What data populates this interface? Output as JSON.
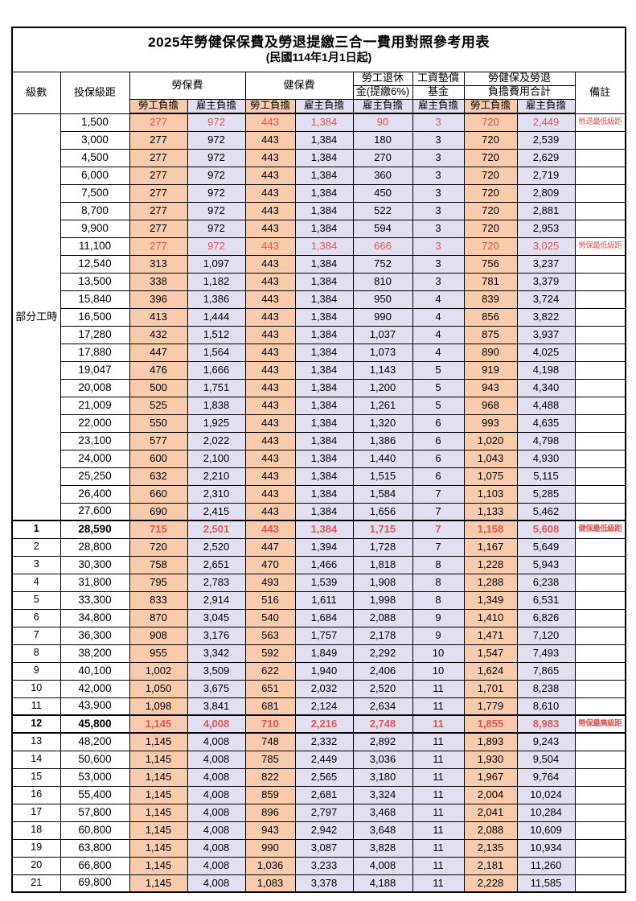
{
  "page": {
    "title": "2025年勞健保保費及勞退提繳三合一費用對照參考用表",
    "subtitle": "(民國114年1月1日起)"
  },
  "header": {
    "level": "級數",
    "salary": "投保級距",
    "labor_insurance": "勞保費",
    "health_insurance": "健保費",
    "pension_line1": "勞工退休",
    "pension_line2": "金(提繳6%)",
    "wage_fund_line1": "工資墊償",
    "wage_fund_line2": "基金",
    "total_line1": "勞健保及勞退",
    "total_line2": "負擔費用合計",
    "remark": "備註",
    "employee_burden": "勞工負擔",
    "employer_burden": "雇主負擔"
  },
  "sections": {
    "part_time_label": "部分工時"
  },
  "colors": {
    "employee_bg": "#F8CBAD",
    "employer_bg": "#E2DFF0",
    "highlight_red": "#E15656",
    "border": "#000000"
  },
  "rows": [
    {
      "level": "",
      "salary": "1,500",
      "values": [
        "277",
        "972",
        "443",
        "1,384",
        "90",
        "3",
        "720",
        "2,449"
      ],
      "remark": "勞退最低級距",
      "red": true,
      "bold": false
    },
    {
      "level": "",
      "salary": "3,000",
      "values": [
        "277",
        "972",
        "443",
        "1,384",
        "180",
        "3",
        "720",
        "2,539"
      ],
      "remark": "",
      "red": false,
      "bold": false
    },
    {
      "level": "",
      "salary": "4,500",
      "values": [
        "277",
        "972",
        "443",
        "1,384",
        "270",
        "3",
        "720",
        "2,629"
      ],
      "remark": "",
      "red": false,
      "bold": false
    },
    {
      "level": "",
      "salary": "6,000",
      "values": [
        "277",
        "972",
        "443",
        "1,384",
        "360",
        "3",
        "720",
        "2,719"
      ],
      "remark": "",
      "red": false,
      "bold": false
    },
    {
      "level": "",
      "salary": "7,500",
      "values": [
        "277",
        "972",
        "443",
        "1,384",
        "450",
        "3",
        "720",
        "2,809"
      ],
      "remark": "",
      "red": false,
      "bold": false
    },
    {
      "level": "",
      "salary": "8,700",
      "values": [
        "277",
        "972",
        "443",
        "1,384",
        "522",
        "3",
        "720",
        "2,881"
      ],
      "remark": "",
      "red": false,
      "bold": false
    },
    {
      "level": "",
      "salary": "9,900",
      "values": [
        "277",
        "972",
        "443",
        "1,384",
        "594",
        "3",
        "720",
        "2,953"
      ],
      "remark": "",
      "red": false,
      "bold": false
    },
    {
      "level": "",
      "salary": "11,100",
      "values": [
        "277",
        "972",
        "443",
        "1,384",
        "666",
        "3",
        "720",
        "3,025"
      ],
      "remark": "勞保最低級距",
      "red": true,
      "bold": false
    },
    {
      "level": "",
      "salary": "12,540",
      "values": [
        "313",
        "1,097",
        "443",
        "1,384",
        "752",
        "3",
        "756",
        "3,237"
      ],
      "remark": "",
      "red": false,
      "bold": false
    },
    {
      "level": "",
      "salary": "13,500",
      "values": [
        "338",
        "1,182",
        "443",
        "1,384",
        "810",
        "3",
        "781",
        "3,379"
      ],
      "remark": "",
      "red": false,
      "bold": false
    },
    {
      "level": "",
      "salary": "15,840",
      "values": [
        "396",
        "1,386",
        "443",
        "1,384",
        "950",
        "4",
        "839",
        "3,724"
      ],
      "remark": "",
      "red": false,
      "bold": false
    },
    {
      "level": "",
      "salary": "16,500",
      "values": [
        "413",
        "1,444",
        "443",
        "1,384",
        "990",
        "4",
        "856",
        "3,822"
      ],
      "remark": "",
      "red": false,
      "bold": false
    },
    {
      "level": "",
      "salary": "17,280",
      "values": [
        "432",
        "1,512",
        "443",
        "1,384",
        "1,037",
        "4",
        "875",
        "3,937"
      ],
      "remark": "",
      "red": false,
      "bold": false
    },
    {
      "level": "",
      "salary": "17,880",
      "values": [
        "447",
        "1,564",
        "443",
        "1,384",
        "1,073",
        "4",
        "890",
        "4,025"
      ],
      "remark": "",
      "red": false,
      "bold": false
    },
    {
      "level": "",
      "salary": "19,047",
      "values": [
        "476",
        "1,666",
        "443",
        "1,384",
        "1,143",
        "5",
        "919",
        "4,198"
      ],
      "remark": "",
      "red": false,
      "bold": false
    },
    {
      "level": "",
      "salary": "20,008",
      "values": [
        "500",
        "1,751",
        "443",
        "1,384",
        "1,200",
        "5",
        "943",
        "4,340"
      ],
      "remark": "",
      "red": false,
      "bold": false
    },
    {
      "level": "",
      "salary": "21,009",
      "values": [
        "525",
        "1,838",
        "443",
        "1,384",
        "1,261",
        "5",
        "968",
        "4,488"
      ],
      "remark": "",
      "red": false,
      "bold": false
    },
    {
      "level": "",
      "salary": "22,000",
      "values": [
        "550",
        "1,925",
        "443",
        "1,384",
        "1,320",
        "6",
        "993",
        "4,635"
      ],
      "remark": "",
      "red": false,
      "bold": false
    },
    {
      "level": "",
      "salary": "23,100",
      "values": [
        "577",
        "2,022",
        "443",
        "1,384",
        "1,386",
        "6",
        "1,020",
        "4,798"
      ],
      "remark": "",
      "red": false,
      "bold": false
    },
    {
      "level": "",
      "salary": "24,000",
      "values": [
        "600",
        "2,100",
        "443",
        "1,384",
        "1,440",
        "6",
        "1,043",
        "4,930"
      ],
      "remark": "",
      "red": false,
      "bold": false
    },
    {
      "level": "",
      "salary": "25,250",
      "values": [
        "632",
        "2,210",
        "443",
        "1,384",
        "1,515",
        "6",
        "1,075",
        "5,115"
      ],
      "remark": "",
      "red": false,
      "bold": false
    },
    {
      "level": "",
      "salary": "26,400",
      "values": [
        "660",
        "2,310",
        "443",
        "1,384",
        "1,584",
        "7",
        "1,103",
        "5,285"
      ],
      "remark": "",
      "red": false,
      "bold": false
    },
    {
      "level": "",
      "salary": "27,600",
      "values": [
        "690",
        "2,415",
        "443",
        "1,384",
        "1,656",
        "7",
        "1,133",
        "5,462"
      ],
      "remark": "",
      "red": false,
      "bold": false
    },
    {
      "level": "1",
      "salary": "28,590",
      "values": [
        "715",
        "2,501",
        "443",
        "1,384",
        "1,715",
        "7",
        "1,158",
        "5,608"
      ],
      "remark": "健保最低級距",
      "red": true,
      "bold": true
    },
    {
      "level": "2",
      "salary": "28,800",
      "values": [
        "720",
        "2,520",
        "447",
        "1,394",
        "1,728",
        "7",
        "1,167",
        "5,649"
      ],
      "remark": "",
      "red": false,
      "bold": false
    },
    {
      "level": "3",
      "salary": "30,300",
      "values": [
        "758",
        "2,651",
        "470",
        "1,466",
        "1,818",
        "8",
        "1,228",
        "5,943"
      ],
      "remark": "",
      "red": false,
      "bold": false
    },
    {
      "level": "4",
      "salary": "31,800",
      "values": [
        "795",
        "2,783",
        "493",
        "1,539",
        "1,908",
        "8",
        "1,288",
        "6,238"
      ],
      "remark": "",
      "red": false,
      "bold": false
    },
    {
      "level": "5",
      "salary": "33,300",
      "values": [
        "833",
        "2,914",
        "516",
        "1,611",
        "1,998",
        "8",
        "1,349",
        "6,531"
      ],
      "remark": "",
      "red": false,
      "bold": false
    },
    {
      "level": "6",
      "salary": "34,800",
      "values": [
        "870",
        "3,045",
        "540",
        "1,684",
        "2,088",
        "9",
        "1,410",
        "6,826"
      ],
      "remark": "",
      "red": false,
      "bold": false
    },
    {
      "level": "7",
      "salary": "36,300",
      "values": [
        "908",
        "3,176",
        "563",
        "1,757",
        "2,178",
        "9",
        "1,471",
        "7,120"
      ],
      "remark": "",
      "red": false,
      "bold": false
    },
    {
      "level": "8",
      "salary": "38,200",
      "values": [
        "955",
        "3,342",
        "592",
        "1,849",
        "2,292",
        "10",
        "1,547",
        "7,493"
      ],
      "remark": "",
      "red": false,
      "bold": false
    },
    {
      "level": "9",
      "salary": "40,100",
      "values": [
        "1,002",
        "3,509",
        "622",
        "1,940",
        "2,406",
        "10",
        "1,624",
        "7,865"
      ],
      "remark": "",
      "red": false,
      "bold": false
    },
    {
      "level": "10",
      "salary": "42,000",
      "values": [
        "1,050",
        "3,675",
        "651",
        "2,032",
        "2,520",
        "11",
        "1,701",
        "8,238"
      ],
      "remark": "",
      "red": false,
      "bold": false
    },
    {
      "level": "11",
      "salary": "43,900",
      "values": [
        "1,098",
        "3,841",
        "681",
        "2,124",
        "2,634",
        "11",
        "1,779",
        "8,610"
      ],
      "remark": "",
      "red": false,
      "bold": false
    },
    {
      "level": "12",
      "salary": "45,800",
      "values": [
        "1,145",
        "4,008",
        "710",
        "2,216",
        "2,748",
        "11",
        "1,855",
        "8,983"
      ],
      "remark": "勞保最高級距",
      "red": true,
      "bold": true
    },
    {
      "level": "13",
      "salary": "48,200",
      "values": [
        "1,145",
        "4,008",
        "748",
        "2,332",
        "2,892",
        "11",
        "1,893",
        "9,243"
      ],
      "remark": "",
      "red": false,
      "bold": false
    },
    {
      "level": "14",
      "salary": "50,600",
      "values": [
        "1,145",
        "4,008",
        "785",
        "2,449",
        "3,036",
        "11",
        "1,930",
        "9,504"
      ],
      "remark": "",
      "red": false,
      "bold": false
    },
    {
      "level": "15",
      "salary": "53,000",
      "values": [
        "1,145",
        "4,008",
        "822",
        "2,565",
        "3,180",
        "11",
        "1,967",
        "9,764"
      ],
      "remark": "",
      "red": false,
      "bold": false
    },
    {
      "level": "16",
      "salary": "55,400",
      "values": [
        "1,145",
        "4,008",
        "859",
        "2,681",
        "3,324",
        "11",
        "2,004",
        "10,024"
      ],
      "remark": "",
      "red": false,
      "bold": false
    },
    {
      "level": "17",
      "salary": "57,800",
      "values": [
        "1,145",
        "4,008",
        "896",
        "2,797",
        "3,468",
        "11",
        "2,041",
        "10,284"
      ],
      "remark": "",
      "red": false,
      "bold": false
    },
    {
      "level": "18",
      "salary": "60,800",
      "values": [
        "1,145",
        "4,008",
        "943",
        "2,942",
        "3,648",
        "11",
        "2,088",
        "10,609"
      ],
      "remark": "",
      "red": false,
      "bold": false
    },
    {
      "level": "19",
      "salary": "63,800",
      "values": [
        "1,145",
        "4,008",
        "990",
        "3,087",
        "3,828",
        "11",
        "2,135",
        "10,934"
      ],
      "remark": "",
      "red": false,
      "bold": false
    },
    {
      "level": "20",
      "salary": "66,800",
      "values": [
        "1,145",
        "4,008",
        "1,036",
        "3,233",
        "4,008",
        "11",
        "2,181",
        "11,260"
      ],
      "remark": "",
      "red": false,
      "bold": false
    },
    {
      "level": "21",
      "salary": "69,800",
      "values": [
        "1,145",
        "4,008",
        "1,083",
        "3,378",
        "4,188",
        "11",
        "2,228",
        "11,585"
      ],
      "remark": "",
      "red": false,
      "bold": false
    }
  ]
}
